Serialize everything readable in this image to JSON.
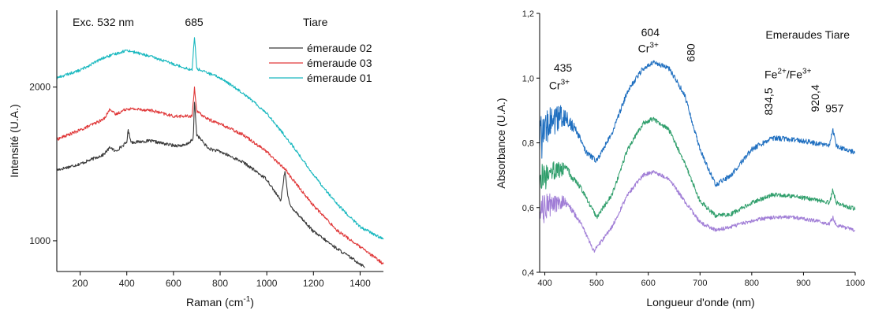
{
  "chart_data": [
    {
      "type": "line",
      "xlabel_base": "Raman (cm",
      "xlabel_sup": "-1",
      "xlabel_end": ")",
      "ylabel": "Intensité (U.A.)",
      "xlim": [
        100,
        1500
      ],
      "ylim": [
        800,
        2500
      ],
      "xticks": [
        "200",
        "400",
        "600",
        "800",
        "1000",
        "1200",
        "1400"
      ],
      "yticks": [
        "1000",
        "2000"
      ],
      "legend_title": "Tiare",
      "annotations": [
        "Exc. 532 nm",
        "685"
      ],
      "series": [
        {
          "name": "émeraude 02",
          "color": "#3a3a3a",
          "points": [
            [
              100,
              1460
            ],
            [
              200,
              1500
            ],
            [
              300,
              1560
            ],
            [
              330,
              1610
            ],
            [
              350,
              1580
            ],
            [
              400,
              1640
            ],
            [
              405,
              1720
            ],
            [
              420,
              1640
            ],
            [
              500,
              1650
            ],
            [
              600,
              1620
            ],
            [
              650,
              1620
            ],
            [
              685,
              1660
            ],
            [
              690,
              1910
            ],
            [
              700,
              1690
            ],
            [
              750,
              1600
            ],
            [
              800,
              1580
            ],
            [
              900,
              1510
            ],
            [
              1000,
              1400
            ],
            [
              1030,
              1330
            ],
            [
              1060,
              1260
            ],
            [
              1078,
              1460
            ],
            [
              1090,
              1290
            ],
            [
              1100,
              1230
            ],
            [
              1200,
              1060
            ],
            [
              1300,
              950
            ],
            [
              1400,
              850
            ],
            [
              1420,
              830
            ]
          ],
          "noise": 10
        },
        {
          "name": "émeraude 03",
          "color": "#e0393a",
          "points": [
            [
              100,
              1660
            ],
            [
              200,
              1720
            ],
            [
              300,
              1790
            ],
            [
              330,
              1860
            ],
            [
              350,
              1820
            ],
            [
              400,
              1860
            ],
            [
              500,
              1850
            ],
            [
              600,
              1810
            ],
            [
              680,
              1810
            ],
            [
              690,
              2000
            ],
            [
              700,
              1840
            ],
            [
              750,
              1790
            ],
            [
              800,
              1760
            ],
            [
              900,
              1690
            ],
            [
              1000,
              1580
            ],
            [
              1060,
              1490
            ],
            [
              1078,
              1470
            ],
            [
              1100,
              1420
            ],
            [
              1200,
              1230
            ],
            [
              1300,
              1070
            ],
            [
              1400,
              960
            ],
            [
              1500,
              850
            ]
          ],
          "noise": 10
        },
        {
          "name": "émeraude 01",
          "color": "#19b8bf",
          "points": [
            [
              100,
              2060
            ],
            [
              200,
              2110
            ],
            [
              300,
              2190
            ],
            [
              400,
              2240
            ],
            [
              500,
              2200
            ],
            [
              600,
              2150
            ],
            [
              680,
              2110
            ],
            [
              690,
              2330
            ],
            [
              700,
              2120
            ],
            [
              800,
              2060
            ],
            [
              900,
              1960
            ],
            [
              1000,
              1830
            ],
            [
              1100,
              1640
            ],
            [
              1200,
              1430
            ],
            [
              1300,
              1240
            ],
            [
              1400,
              1090
            ],
            [
              1500,
              1010
            ]
          ],
          "noise": 9
        }
      ]
    },
    {
      "type": "line",
      "title": "Emeraudes Tiare",
      "xlabel": "Longueur d'onde (nm)",
      "ylabel": "Absorbance (U.A.)",
      "xlim": [
        390,
        1000
      ],
      "ylim": [
        0.4,
        1.2
      ],
      "xticks": [
        "400",
        "500",
        "600",
        "700",
        "800",
        "900",
        "1000"
      ],
      "yticks": [
        "0,4",
        "0,6",
        "0,8",
        "1,0",
        "1,2"
      ],
      "annotations": [
        {
          "text": "435",
          "x": 435,
          "y": 1.02
        },
        {
          "text": "604",
          "x": 604,
          "y": 1.13
        },
        {
          "text": "680",
          "x": 690,
          "y": 1.05,
          "rotate": true
        },
        {
          "text": "834,5",
          "x": 840,
          "y": 0.885,
          "rotate": true
        },
        {
          "text": "920,4",
          "x": 930,
          "y": 0.895,
          "rotate": true
        },
        {
          "text": "957",
          "x": 960,
          "y": 0.895
        }
      ],
      "species": [
        {
          "base": "Cr",
          "sup": "3+",
          "x": 428,
          "y": 0.965
        },
        {
          "base": "Cr",
          "sup": "3+",
          "x": 600,
          "y": 1.08
        },
        {
          "base": "Fe",
          "sup": "2+",
          "mid": "/Fe",
          "sup2": "3+",
          "x": 870,
          "y": 1.0
        }
      ],
      "series": [
        {
          "color": "#1f6fc0",
          "points": [
            [
              390,
              0.8
            ],
            [
              410,
              0.86
            ],
            [
              435,
              0.885
            ],
            [
              460,
              0.84
            ],
            [
              480,
              0.77
            ],
            [
              500,
              0.745
            ],
            [
              530,
              0.83
            ],
            [
              560,
              0.96
            ],
            [
              590,
              1.03
            ],
            [
              610,
              1.05
            ],
            [
              640,
              1.03
            ],
            [
              670,
              0.95
            ],
            [
              700,
              0.78
            ],
            [
              730,
              0.67
            ],
            [
              760,
              0.7
            ],
            [
              800,
              0.78
            ],
            [
              840,
              0.815
            ],
            [
              880,
              0.81
            ],
            [
              920,
              0.8
            ],
            [
              950,
              0.79
            ],
            [
              957,
              0.84
            ],
            [
              963,
              0.79
            ],
            [
              1000,
              0.77
            ]
          ],
          "noise": 0.008,
          "noise_start": [
            0.07,
            480
          ]
        },
        {
          "color": "#2f9e6b",
          "points": [
            [
              390,
              0.68
            ],
            [
              410,
              0.71
            ],
            [
              440,
              0.72
            ],
            [
              470,
              0.66
            ],
            [
              500,
              0.57
            ],
            [
              530,
              0.64
            ],
            [
              560,
              0.78
            ],
            [
              590,
              0.86
            ],
            [
              610,
              0.875
            ],
            [
              640,
              0.84
            ],
            [
              670,
              0.74
            ],
            [
              700,
              0.62
            ],
            [
              730,
              0.575
            ],
            [
              760,
              0.58
            ],
            [
              800,
              0.615
            ],
            [
              840,
              0.64
            ],
            [
              880,
              0.635
            ],
            [
              920,
              0.625
            ],
            [
              950,
              0.615
            ],
            [
              957,
              0.655
            ],
            [
              963,
              0.615
            ],
            [
              1000,
              0.595
            ]
          ],
          "noise": 0.007,
          "noise_start": [
            0.05,
            470
          ]
        },
        {
          "color": "#a07dd6",
          "points": [
            [
              390,
              0.58
            ],
            [
              410,
              0.61
            ],
            [
              440,
              0.62
            ],
            [
              470,
              0.55
            ],
            [
              495,
              0.465
            ],
            [
              530,
              0.54
            ],
            [
              560,
              0.64
            ],
            [
              590,
              0.7
            ],
            [
              610,
              0.71
            ],
            [
              640,
              0.69
            ],
            [
              670,
              0.62
            ],
            [
              700,
              0.555
            ],
            [
              730,
              0.53
            ],
            [
              760,
              0.54
            ],
            [
              800,
              0.56
            ],
            [
              840,
              0.57
            ],
            [
              880,
              0.57
            ],
            [
              920,
              0.56
            ],
            [
              950,
              0.55
            ],
            [
              957,
              0.57
            ],
            [
              963,
              0.545
            ],
            [
              1000,
              0.53
            ]
          ],
          "noise": 0.006,
          "noise_start": [
            0.05,
            470
          ]
        }
      ]
    }
  ]
}
